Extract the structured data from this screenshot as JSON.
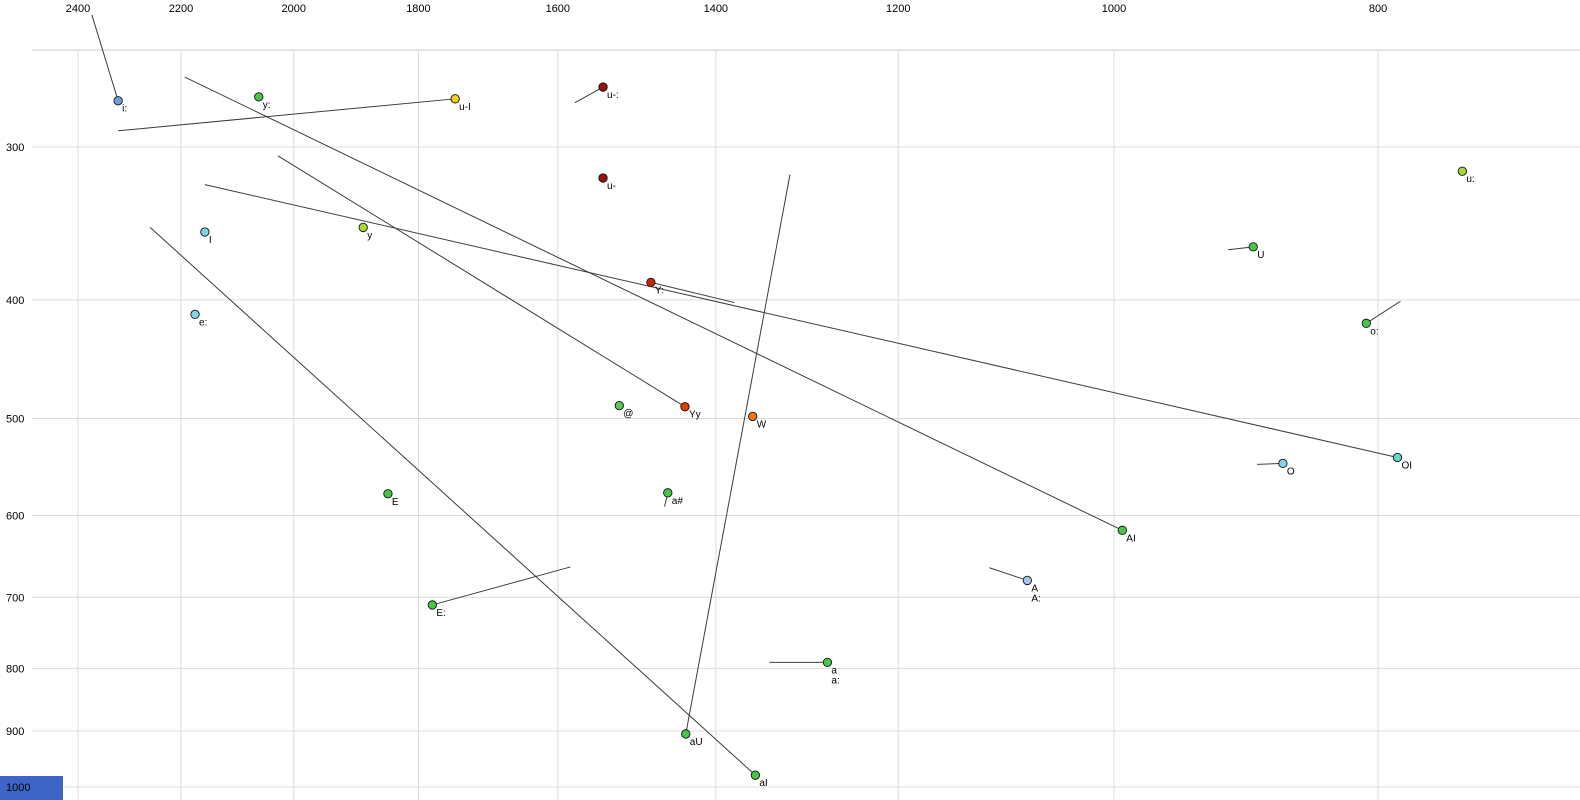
{
  "page": {
    "background": "#ffffff"
  },
  "decor": {
    "corner_color": "#3d64c6"
  },
  "chart_data": {
    "type": "scatter",
    "title": "",
    "description": "Vowel formant plot: F2 (Hz, log scale, reversed) on x-axis, F1 (Hz, log scale, increasing downward) on y-axis. Dots mark vowel tokens; line segments show diphthong/glide trajectories.",
    "x_axis": {
      "label": "",
      "scale": "log",
      "reversed": true,
      "tick_values": [
        2400,
        2200,
        2000,
        1800,
        1600,
        1400,
        1200,
        1000,
        800
      ],
      "grid_values": [
        2400,
        2200,
        2000,
        1800,
        1600,
        1400,
        1200,
        1000,
        800
      ],
      "range": [
        2500,
        700
      ]
    },
    "y_axis": {
      "label": "",
      "scale": "log",
      "downward": true,
      "tick_values": [
        300,
        400,
        500,
        600,
        700,
        800,
        900,
        1000
      ],
      "grid_values": [
        250,
        300,
        400,
        500,
        600,
        700,
        800,
        900,
        1000
      ],
      "range": [
        250,
        1050
      ]
    },
    "points": [
      {
        "label": "i:",
        "f2": 2320,
        "f1": 275,
        "color": "#6f9fd8",
        "traj": [
          2372,
          234
        ]
      },
      {
        "label": "y:",
        "f2": 2060,
        "f1": 273,
        "color": "#46c846",
        "traj": null
      },
      {
        "label": "u-I",
        "f2": 1745,
        "f1": 274,
        "color": "#f0d020",
        "traj": [
          2320,
          291
        ]
      },
      {
        "label": "u-:",
        "f2": 1540,
        "f1": 268,
        "color": "#991111",
        "traj": [
          1577,
          276
        ]
      },
      {
        "label": "u-",
        "f2": 1540,
        "f1": 318,
        "color": "#991111",
        "traj": null
      },
      {
        "label": "u:",
        "f2": 745,
        "f1": 314,
        "color": "#a8d832",
        "traj": null
      },
      {
        "label": "y",
        "f2": 1886,
        "f1": 349,
        "color": "#a8d832",
        "traj": null
      },
      {
        "label": "I",
        "f2": 2156,
        "f1": 352,
        "color": "#7fd4e8",
        "traj": null
      },
      {
        "label": "U",
        "f2": 889,
        "f1": 362,
        "color": "#46c846",
        "traj": [
          908,
          364
        ]
      },
      {
        "label": "e:",
        "f2": 2174,
        "f1": 411,
        "color": "#7fd4e8",
        "traj": null
      },
      {
        "label": "Y:",
        "f2": 1479,
        "f1": 387,
        "color": "#cc2600",
        "traj": [
          1378,
          402
        ]
      },
      {
        "label": "o:",
        "f2": 808,
        "f1": 418,
        "color": "#46c846",
        "traj": [
          785,
          401
        ]
      },
      {
        "label": "@",
        "f2": 1519,
        "f1": 488,
        "color": "#55cc55",
        "traj": null
      },
      {
        "label": "Yy",
        "f2": 1437,
        "f1": 489,
        "color": "#e03c00",
        "traj": [
          2027,
          305
        ]
      },
      {
        "label": "W",
        "f2": 1357,
        "f1": 498,
        "color": "#ee7711",
        "traj": null
      },
      {
        "label": "O",
        "f2": 867,
        "f1": 544,
        "color": "#7fd4e8",
        "traj": [
          886,
          545
        ]
      },
      {
        "label": "OI",
        "f2": 787,
        "f1": 538,
        "color": "#63d6cf",
        "traj": [
          2156,
          322
        ]
      },
      {
        "label": "E",
        "f2": 1847,
        "f1": 576,
        "color": "#46c846",
        "traj": null
      },
      {
        "label": "a#",
        "f2": 1458,
        "f1": 575,
        "color": "#46c846",
        "traj": [
          1462,
          590
        ]
      },
      {
        "label": "AI",
        "f2": 993,
        "f1": 617,
        "color": "#46c846",
        "traj": [
          2193,
          263
        ]
      },
      {
        "label": "A",
        "label2": "A:",
        "f2": 1076,
        "f1": 678,
        "color": "#a7c4ec",
        "traj": [
          1111,
          662
        ]
      },
      {
        "label": "E:",
        "f2": 1779,
        "f1": 710,
        "color": "#46c846",
        "traj": [
          1583,
          661
        ]
      },
      {
        "label": "aU",
        "f2": 1436,
        "f1": 905,
        "color": "#46c846",
        "traj": [
          1315,
          316
        ]
      },
      {
        "label": "aI",
        "f2": 1354,
        "f1": 978,
        "color": "#46c846",
        "traj": [
          2258,
          349
        ]
      },
      {
        "label": "a",
        "label2": "a:",
        "f2": 1274,
        "f1": 791,
        "color": "#46c846",
        "traj": [
          1338,
          791
        ]
      }
    ],
    "legend": null,
    "grid": true
  }
}
